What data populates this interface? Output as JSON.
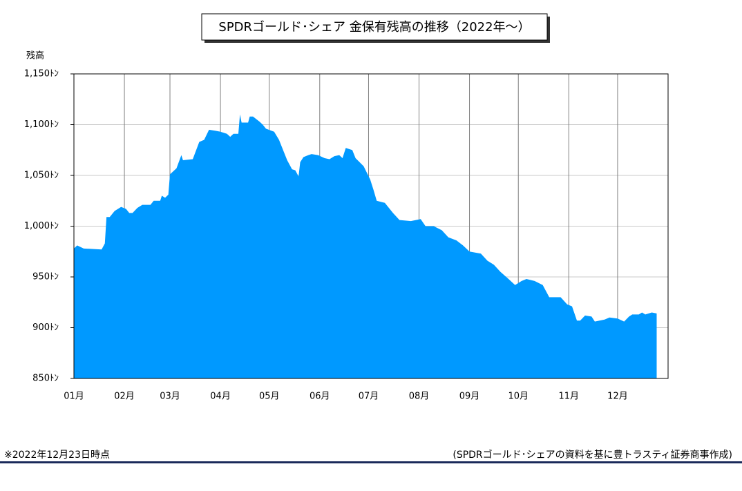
{
  "chart_data": {
    "type": "area",
    "title": "SPDRゴールド･シェア 金保有残高の推移（2022年～）",
    "y_label": "残高",
    "note": "※2022年12月23日時点",
    "source": "(SPDRゴールド･シェアの資料を基に豊トラスティ証券商事作成)",
    "color": "#0099ff",
    "grid": true,
    "xlim": [
      0,
      365
    ],
    "xticks": [
      {
        "value": 0,
        "label": "01月"
      },
      {
        "value": 31,
        "label": "02月"
      },
      {
        "value": 59,
        "label": "03月"
      },
      {
        "value": 90,
        "label": "04月"
      },
      {
        "value": 120,
        "label": "05月"
      },
      {
        "value": 151,
        "label": "06月"
      },
      {
        "value": 181,
        "label": "07月"
      },
      {
        "value": 212,
        "label": "08月"
      },
      {
        "value": 243,
        "label": "09月"
      },
      {
        "value": 273,
        "label": "10月"
      },
      {
        "value": 304,
        "label": "11月"
      },
      {
        "value": 334,
        "label": "12月"
      }
    ],
    "ylim": [
      850,
      1150
    ],
    "yticks": [
      {
        "value": 850,
        "label": "850ﾄﾝ"
      },
      {
        "value": 900,
        "label": "900ﾄﾝ"
      },
      {
        "value": 950,
        "label": "950ﾄﾝ"
      },
      {
        "value": 1000,
        "label": "1,000ﾄﾝ"
      },
      {
        "value": 1050,
        "label": "1,050ﾄﾝ"
      },
      {
        "value": 1100,
        "label": "1,100ﾄﾝ"
      },
      {
        "value": 1150,
        "label": "1,150ﾄﾝ"
      }
    ],
    "x": [
      0,
      2,
      6,
      17,
      19,
      20,
      22,
      25,
      29,
      32,
      34,
      36,
      39,
      42,
      47,
      49,
      53,
      54,
      56,
      58,
      59,
      63,
      66,
      67,
      73,
      77,
      80,
      83,
      87,
      90,
      94,
      96,
      98,
      101,
      102,
      103,
      107,
      108,
      110,
      114,
      116,
      118,
      123,
      126,
      129,
      131,
      134,
      136,
      138,
      139,
      141,
      144,
      146,
      150,
      154,
      157,
      160,
      163,
      165,
      167,
      171,
      173,
      178,
      182,
      184,
      186,
      191,
      196,
      200,
      207,
      213,
      216,
      221,
      226,
      230,
      235,
      239,
      243,
      250,
      254,
      258,
      262,
      267,
      271,
      275,
      278,
      283,
      288,
      292,
      299,
      303,
      306,
      309,
      311,
      314,
      318,
      320,
      326,
      329,
      334,
      338,
      341,
      343,
      347,
      349,
      351,
      355,
      358
    ],
    "values": [
      978,
      981,
      978,
      977,
      983,
      1009,
      1009,
      1015,
      1019,
      1017,
      1013,
      1013,
      1018,
      1021,
      1021,
      1025,
      1025,
      1030,
      1028,
      1031,
      1051,
      1057,
      1070,
      1065,
      1066,
      1083,
      1085,
      1095,
      1094,
      1093,
      1091,
      1088,
      1091,
      1091,
      1110,
      1102,
      1102,
      1108,
      1108,
      1103,
      1100,
      1096,
      1093,
      1085,
      1073,
      1065,
      1056,
      1055,
      1049,
      1063,
      1068,
      1070,
      1071,
      1070,
      1067,
      1066,
      1069,
      1070,
      1067,
      1077,
      1075,
      1067,
      1059,
      1046,
      1036,
      1025,
      1023,
      1013,
      1006,
      1005,
      1007,
      1000,
      1000,
      996,
      989,
      986,
      981,
      975,
      973,
      966,
      962,
      955,
      948,
      942,
      946,
      948,
      946,
      942,
      930,
      930,
      923,
      921,
      907,
      907,
      912,
      911,
      906,
      908,
      910,
      909,
      906,
      911,
      913,
      913,
      915,
      913,
      915,
      914
    ]
  }
}
